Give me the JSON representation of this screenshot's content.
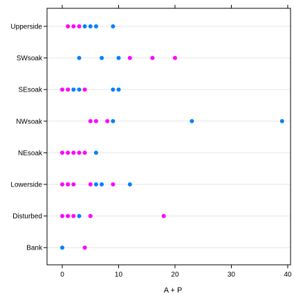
{
  "chart_data": {
    "type": "scatter",
    "xlabel": "A + P",
    "ylabel": "",
    "xlim": [
      -2.7,
      40.5
    ],
    "x_ticks": [
      0,
      10,
      20,
      30,
      40
    ],
    "grid": "horizontal reference lines",
    "legend": "none",
    "categories": [
      "Upperside",
      "SWsoak",
      "SEsoak",
      "NWsoak",
      "NEsoak",
      "Lowerside",
      "Disturbed",
      "Bank"
    ],
    "series": [
      {
        "color": "#ff00ff",
        "points": [
          {
            "category": "Upperside",
            "x": 1
          },
          {
            "category": "Upperside",
            "x": 2
          },
          {
            "category": "Upperside",
            "x": 3
          },
          {
            "category": "SWsoak",
            "x": 12
          },
          {
            "category": "SWsoak",
            "x": 16
          },
          {
            "category": "SWsoak",
            "x": 20
          },
          {
            "category": "SEsoak",
            "x": 0
          },
          {
            "category": "SEsoak",
            "x": 1
          },
          {
            "category": "SEsoak",
            "x": 4
          },
          {
            "category": "NWsoak",
            "x": 5
          },
          {
            "category": "NWsoak",
            "x": 6
          },
          {
            "category": "NWsoak",
            "x": 8
          },
          {
            "category": "NEsoak",
            "x": 0
          },
          {
            "category": "NEsoak",
            "x": 1
          },
          {
            "category": "NEsoak",
            "x": 2
          },
          {
            "category": "NEsoak",
            "x": 3
          },
          {
            "category": "NEsoak",
            "x": 4
          },
          {
            "category": "Lowerside",
            "x": 0
          },
          {
            "category": "Lowerside",
            "x": 1
          },
          {
            "category": "Lowerside",
            "x": 2
          },
          {
            "category": "Lowerside",
            "x": 5
          },
          {
            "category": "Lowerside",
            "x": 9
          },
          {
            "category": "Disturbed",
            "x": 0
          },
          {
            "category": "Disturbed",
            "x": 1
          },
          {
            "category": "Disturbed",
            "x": 2
          },
          {
            "category": "Disturbed",
            "x": 5
          },
          {
            "category": "Disturbed",
            "x": 18
          },
          {
            "category": "Bank",
            "x": 4
          }
        ]
      },
      {
        "color": "#0080ff",
        "points": [
          {
            "category": "Upperside",
            "x": 4
          },
          {
            "category": "Upperside",
            "x": 5
          },
          {
            "category": "Upperside",
            "x": 6
          },
          {
            "category": "Upperside",
            "x": 9
          },
          {
            "category": "SWsoak",
            "x": 3
          },
          {
            "category": "SWsoak",
            "x": 7
          },
          {
            "category": "SWsoak",
            "x": 10
          },
          {
            "category": "SEsoak",
            "x": 2
          },
          {
            "category": "SEsoak",
            "x": 3
          },
          {
            "category": "SEsoak",
            "x": 9
          },
          {
            "category": "SEsoak",
            "x": 10
          },
          {
            "category": "NWsoak",
            "x": 9
          },
          {
            "category": "NWsoak",
            "x": 23
          },
          {
            "category": "NWsoak",
            "x": 39
          },
          {
            "category": "NEsoak",
            "x": 6
          },
          {
            "category": "Lowerside",
            "x": 6
          },
          {
            "category": "Lowerside",
            "x": 7
          },
          {
            "category": "Lowerside",
            "x": 12
          },
          {
            "category": "Disturbed",
            "x": 3
          },
          {
            "category": "Bank",
            "x": 0
          }
        ]
      }
    ]
  }
}
